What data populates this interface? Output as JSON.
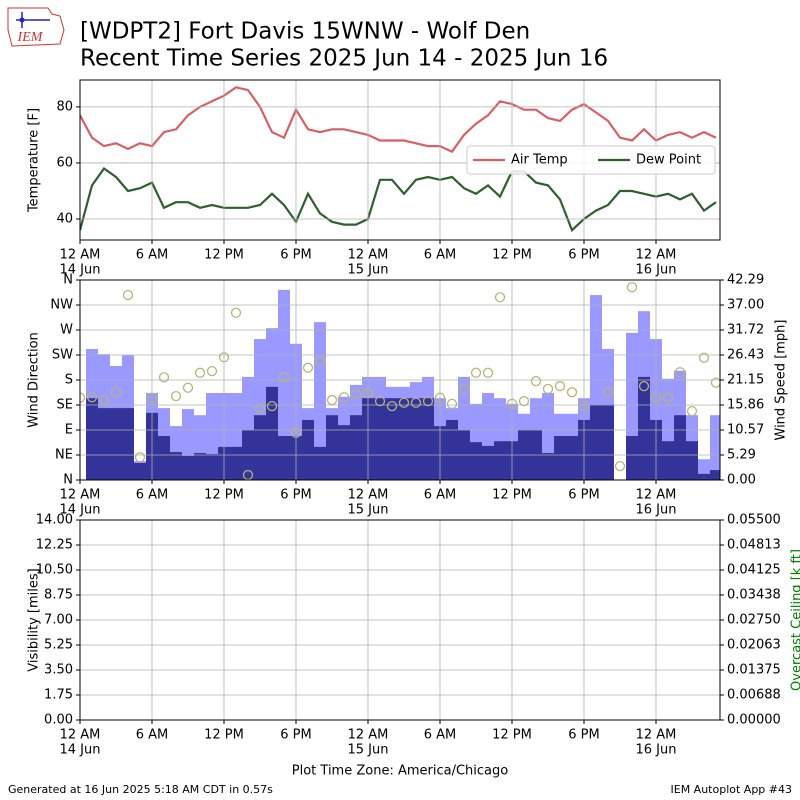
{
  "header": {
    "logo_text": "IEM",
    "title": "[WDPT2] Fort Davis 15WNW - Wolf Den",
    "subtitle": "Recent Time Series 2025 Jun 14 - 2025 Jun 16"
  },
  "footer": {
    "generated": "Generated at 16 Jun 2025 5:18 AM CDT in 0.57s",
    "app": "IEM Autoplot App #43"
  },
  "chart_data": [
    {
      "type": "line",
      "ylabel": "Temperature [F]",
      "x": [
        "2025-06-14 00:00",
        "2025-06-14 01:00",
        "2025-06-14 02:00",
        "2025-06-14 03:00",
        "2025-06-14 04:00",
        "2025-06-14 05:00",
        "2025-06-14 06:00",
        "2025-06-14 07:00",
        "2025-06-14 08:00",
        "2025-06-14 09:00",
        "2025-06-14 10:00",
        "2025-06-14 11:00",
        "2025-06-14 12:00",
        "2025-06-14 13:00",
        "2025-06-14 14:00",
        "2025-06-14 15:00",
        "2025-06-14 16:00",
        "2025-06-14 17:00",
        "2025-06-14 18:00",
        "2025-06-14 19:00",
        "2025-06-14 20:00",
        "2025-06-14 21:00",
        "2025-06-14 22:00",
        "2025-06-14 23:00",
        "2025-06-15 00:00",
        "2025-06-15 01:00",
        "2025-06-15 02:00",
        "2025-06-15 03:00",
        "2025-06-15 04:00",
        "2025-06-15 05:00",
        "2025-06-15 06:00",
        "2025-06-15 07:00",
        "2025-06-15 08:00",
        "2025-06-15 09:00",
        "2025-06-15 10:00",
        "2025-06-15 11:00",
        "2025-06-15 12:00",
        "2025-06-15 13:00",
        "2025-06-15 14:00",
        "2025-06-15 15:00",
        "2025-06-15 16:00",
        "2025-06-15 17:00",
        "2025-06-15 18:00",
        "2025-06-15 19:00",
        "2025-06-15 20:00",
        "2025-06-15 21:00",
        "2025-06-15 22:00",
        "2025-06-15 23:00",
        "2025-06-16 00:00",
        "2025-06-16 01:00",
        "2025-06-16 02:00",
        "2025-06-16 03:00",
        "2025-06-16 04:00",
        "2025-06-16 05:00"
      ],
      "series": [
        {
          "name": "Air Temp",
          "color": "#d95f66",
          "values": [
            77,
            69,
            66,
            67,
            65,
            67,
            66,
            71,
            72,
            77,
            80,
            82,
            84,
            87,
            86,
            80,
            71,
            69,
            79,
            72,
            71,
            72,
            72,
            71,
            70,
            68,
            68,
            68,
            67,
            66,
            66,
            64,
            70,
            74,
            77,
            82,
            81,
            79,
            79,
            76,
            75,
            79,
            81,
            78,
            75,
            69,
            68,
            72,
            68,
            70,
            71,
            69,
            71,
            69
          ]
        },
        {
          "name": "Dew Point",
          "color": "#2f5f2f",
          "values": [
            36,
            52,
            58,
            55,
            50,
            51,
            53,
            44,
            46,
            46,
            44,
            45,
            44,
            44,
            44,
            45,
            49,
            45,
            39,
            49,
            42,
            39,
            38,
            38,
            40,
            54,
            54,
            49,
            54,
            55,
            54,
            55,
            51,
            49,
            52,
            48,
            57,
            57,
            53,
            52,
            47,
            36,
            40,
            43,
            45,
            50,
            50,
            49,
            48,
            49,
            47,
            49,
            43,
            46
          ]
        }
      ],
      "xlim": [
        "2025-06-14 00:00",
        "2025-06-16 05:20"
      ],
      "xticks": [
        {
          "value": "2025-06-14 00:00",
          "label": "12 AM",
          "date": "14 Jun"
        },
        {
          "value": "2025-06-14 06:00",
          "label": "6 AM"
        },
        {
          "value": "2025-06-14 12:00",
          "label": "12 PM"
        },
        {
          "value": "2025-06-14 18:00",
          "label": "6 PM"
        },
        {
          "value": "2025-06-15 00:00",
          "label": "12 AM",
          "date": "15 Jun"
        },
        {
          "value": "2025-06-15 06:00",
          "label": "6 AM"
        },
        {
          "value": "2025-06-15 12:00",
          "label": "12 PM"
        },
        {
          "value": "2025-06-15 18:00",
          "label": "6 PM"
        },
        {
          "value": "2025-06-16 00:00",
          "label": "12 AM",
          "date": "16 Jun"
        }
      ],
      "ylim": [
        32.5,
        89.6
      ],
      "yticks": [
        40,
        60,
        80
      ],
      "grid": true,
      "legend": "center right"
    },
    {
      "type": "bar",
      "ylabel": "Wind Direction",
      "y2label": "Wind Speed [mph]",
      "x": [
        "2025-06-14 00:00",
        "2025-06-14 01:00",
        "2025-06-14 02:00",
        "2025-06-14 03:00",
        "2025-06-14 04:00",
        "2025-06-14 05:00",
        "2025-06-14 06:00",
        "2025-06-14 07:00",
        "2025-06-14 08:00",
        "2025-06-14 09:00",
        "2025-06-14 10:00",
        "2025-06-14 11:00",
        "2025-06-14 12:00",
        "2025-06-14 13:00",
        "2025-06-14 14:00",
        "2025-06-14 15:00",
        "2025-06-14 16:00",
        "2025-06-14 17:00",
        "2025-06-14 18:00",
        "2025-06-14 19:00",
        "2025-06-14 20:00",
        "2025-06-14 21:00",
        "2025-06-14 22:00",
        "2025-06-14 23:00",
        "2025-06-15 00:00",
        "2025-06-15 01:00",
        "2025-06-15 02:00",
        "2025-06-15 03:00",
        "2025-06-15 04:00",
        "2025-06-15 05:00",
        "2025-06-15 06:00",
        "2025-06-15 07:00",
        "2025-06-15 08:00",
        "2025-06-15 09:00",
        "2025-06-15 10:00",
        "2025-06-15 11:00",
        "2025-06-15 12:00",
        "2025-06-15 13:00",
        "2025-06-15 14:00",
        "2025-06-15 15:00",
        "2025-06-15 16:00",
        "2025-06-15 17:00",
        "2025-06-15 18:00",
        "2025-06-15 19:00",
        "2025-06-15 20:00",
        "2025-06-15 21:00",
        "2025-06-15 22:00",
        "2025-06-15 23:00",
        "2025-06-16 00:00",
        "2025-06-16 01:00",
        "2025-06-16 02:00",
        "2025-06-16 03:00",
        "2025-06-16 04:00",
        "2025-06-16 05:00"
      ],
      "series": [
        {
          "type": "bar",
          "axis": "y2",
          "color": "#9999ff",
          "values": [
            null,
            27.7,
            26.6,
            24.1,
            26.4,
            4.0,
            18.4,
            15.2,
            11.4,
            15.0,
            13.7,
            18.4,
            18.4,
            18.4,
            21.8,
            29.8,
            32.1,
            40.2,
            28.8,
            15.2,
            33.4,
            15.2,
            17.6,
            20.1,
            21.8,
            21.8,
            19.7,
            19.7,
            20.7,
            21.8,
            17.3,
            15.2,
            21.8,
            16.1,
            18.4,
            17.3,
            16.1,
            14.0,
            17.3,
            18.4,
            14.0,
            14.0,
            17.3,
            39.1,
            27.7,
            null,
            31.1,
            35.7,
            29.8,
            21.4,
            23.1,
            13.7,
            4.4,
            13.7
          ]
        },
        {
          "type": "bar",
          "axis": "y2",
          "color": "#333399",
          "values": [
            null,
            17.3,
            15.2,
            15.2,
            15.2,
            3.6,
            14.2,
            9.3,
            5.9,
            5.1,
            5.7,
            5.5,
            7.0,
            7.0,
            10.6,
            13.7,
            19.7,
            9.3,
            9.3,
            12.7,
            7.0,
            13.7,
            11.6,
            13.7,
            17.3,
            17.3,
            17.3,
            17.3,
            17.3,
            17.3,
            11.4,
            12.7,
            10.6,
            8.0,
            7.2,
            8.2,
            8.2,
            10.6,
            10.6,
            5.7,
            9.3,
            9.3,
            12.7,
            15.9,
            15.9,
            null,
            9.3,
            21.8,
            12.7,
            8.2,
            13.7,
            8.2,
            1.3,
            2.1
          ]
        },
        {
          "type": "scatter",
          "color": "#b5b574",
          "values": [
            148,
            149,
            144,
            158,
            333,
            41,
            148,
            185,
            151,
            166,
            193,
            196,
            221,
            301,
            9,
            128,
            133,
            185,
            85,
            202,
            214,
            144,
            149,
            155,
            157,
            142,
            133,
            139,
            139,
            142,
            148,
            137,
            164,
            193,
            193,
            329,
            137,
            142,
            178,
            164,
            169,
            158,
            133,
            null,
            158,
            25,
            347,
            169,
            148,
            149,
            194,
            124,
            220,
            175
          ]
        }
      ],
      "xlim": [
        "2025-06-14 00:00",
        "2025-06-16 05:20"
      ],
      "xticks": [
        {
          "value": "2025-06-14 00:00",
          "label": "12 AM",
          "date": "14 Jun"
        },
        {
          "value": "2025-06-14 06:00",
          "label": "6 AM"
        },
        {
          "value": "2025-06-14 12:00",
          "label": "12 PM"
        },
        {
          "value": "2025-06-14 18:00",
          "label": "6 PM"
        },
        {
          "value": "2025-06-15 00:00",
          "label": "12 AM",
          "date": "15 Jun"
        },
        {
          "value": "2025-06-15 06:00",
          "label": "6 AM"
        },
        {
          "value": "2025-06-15 12:00",
          "label": "12 PM"
        },
        {
          "value": "2025-06-15 18:00",
          "label": "6 PM"
        },
        {
          "value": "2025-06-16 00:00",
          "label": "12 AM",
          "date": "16 Jun"
        }
      ],
      "ylim": [
        0,
        360
      ],
      "yticks": [
        {
          "value": 0,
          "label": "N"
        },
        {
          "value": 45,
          "label": "NE"
        },
        {
          "value": 90,
          "label": "E"
        },
        {
          "value": 135,
          "label": "SE"
        },
        {
          "value": 180,
          "label": "S"
        },
        {
          "value": 225,
          "label": "SW"
        },
        {
          "value": 270,
          "label": "W"
        },
        {
          "value": 315,
          "label": "NW"
        },
        {
          "value": 360,
          "label": "N"
        }
      ],
      "y2lim": [
        0,
        42.29
      ],
      "y2ticks": [
        {
          "value": 0,
          "label": "0.00"
        },
        5.29,
        10.57,
        15.86,
        21.15,
        26.43,
        31.72,
        {
          "value": 37,
          "label": "37.00"
        },
        42.29
      ],
      "grid": true
    },
    {
      "type": "line",
      "ylabel": "Visibility [miles]",
      "y2label": "Overcast Ceiling [k ft]",
      "y2label_color": "#008000",
      "xlabel": "Plot Time Zone: America/Chicago",
      "series": [],
      "xlim": [
        "2025-06-14 00:00",
        "2025-06-16 05:20"
      ],
      "xticks": [
        {
          "value": "2025-06-14 00:00",
          "label": "12 AM",
          "date": "14 Jun"
        },
        {
          "value": "2025-06-14 06:00",
          "label": "6 AM"
        },
        {
          "value": "2025-06-14 12:00",
          "label": "12 PM"
        },
        {
          "value": "2025-06-14 18:00",
          "label": "6 PM"
        },
        {
          "value": "2025-06-15 00:00",
          "label": "12 AM",
          "date": "15 Jun"
        },
        {
          "value": "2025-06-15 06:00",
          "label": "6 AM"
        },
        {
          "value": "2025-06-15 12:00",
          "label": "12 PM"
        },
        {
          "value": "2025-06-15 18:00",
          "label": "6 PM"
        },
        {
          "value": "2025-06-16 00:00",
          "label": "12 AM",
          "date": "16 Jun"
        }
      ],
      "ylim": [
        0,
        14
      ],
      "yticks": [
        {
          "value": 0,
          "label": "0.00"
        },
        1.75,
        {
          "value": 3.5,
          "label": "3.50"
        },
        5.25,
        {
          "value": 7,
          "label": "7.00"
        },
        8.75,
        {
          "value": 10.5,
          "label": "10.50"
        },
        12.25,
        {
          "value": 14,
          "label": "14.00"
        }
      ],
      "y2lim": [
        0,
        0.055
      ],
      "y2ticks": [
        {
          "value": 0,
          "label": "0.00000"
        },
        {
          "value": 0.00688,
          "label": "0.00688"
        },
        {
          "value": 0.01375,
          "label": "0.01375"
        },
        {
          "value": 0.02063,
          "label": "0.02063"
        },
        {
          "value": 0.0275,
          "label": "0.02750"
        },
        {
          "value": 0.03438,
          "label": "0.03438"
        },
        {
          "value": 0.04125,
          "label": "0.04125"
        },
        {
          "value": 0.04813,
          "label": "0.04813"
        },
        {
          "value": 0.055,
          "label": "0.05500"
        }
      ],
      "grid": true
    }
  ]
}
